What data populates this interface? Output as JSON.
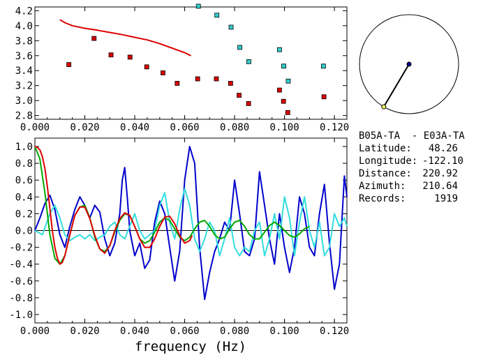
{
  "chart_data": [
    {
      "type": "scatter",
      "name": "dispersion",
      "xlim": [
        0.0,
        0.125
      ],
      "ylim": [
        2.75,
        4.25
      ],
      "xticks": [
        "0.000",
        "0.020",
        "0.040",
        "0.060",
        "0.080",
        "0.100",
        "0.120"
      ],
      "yticks": [
        "2.8",
        "3.0",
        "3.2",
        "3.4",
        "3.6",
        "3.8",
        "4.0",
        "4.2"
      ],
      "series": [
        {
          "color": "#dd0000",
          "kind": "points",
          "x": [
            0.0136,
            0.0237,
            0.0305,
            0.0381,
            0.0448,
            0.0513,
            0.057,
            0.0652,
            0.0727,
            0.0784,
            0.0818,
            0.0856,
            0.098,
            0.0996,
            0.1013,
            0.1158
          ],
          "y": [
            3.48,
            3.83,
            3.61,
            3.58,
            3.45,
            3.37,
            3.23,
            3.29,
            3.29,
            3.23,
            3.07,
            2.96,
            3.14,
            2.99,
            2.84,
            3.05
          ]
        },
        {
          "color": "#33cccc",
          "kind": "points",
          "x": [
            0.0655,
            0.0729,
            0.0786,
            0.0821,
            0.0857,
            0.098,
            0.0997,
            0.1015,
            0.1156
          ],
          "y": [
            4.26,
            4.14,
            3.98,
            3.71,
            3.52,
            3.68,
            3.46,
            3.26,
            3.46
          ]
        },
        {
          "color": "#dd0000",
          "kind": "line",
          "x": [
            0.01,
            0.012,
            0.015,
            0.02,
            0.025,
            0.03,
            0.035,
            0.04,
            0.045,
            0.05,
            0.055,
            0.06,
            0.0625
          ],
          "y": [
            4.08,
            4.04,
            4.0,
            3.965,
            3.94,
            3.91,
            3.88,
            3.845,
            3.81,
            3.76,
            3.7,
            3.64,
            3.6
          ]
        }
      ]
    },
    {
      "type": "line",
      "name": "correlation",
      "xlim": [
        0.0,
        0.125
      ],
      "ylim": [
        -1.1,
        1.1
      ],
      "xlabel": "frequency (Hz)",
      "xticks": [
        "0.000",
        "0.020",
        "0.040",
        "0.060",
        "0.080",
        "0.100",
        "0.120"
      ],
      "yticks": [
        "1.0",
        "0.8",
        "0.6",
        "0.4",
        "0.2",
        "0.0",
        "-0.2",
        "-0.4",
        "-0.6",
        "-0.8",
        "-1.0"
      ],
      "series": [
        {
          "color": "#0000cc",
          "x": [
            0.0,
            0.002,
            0.004,
            0.006,
            0.008,
            0.01,
            0.012,
            0.014,
            0.016,
            0.018,
            0.02,
            0.022,
            0.024,
            0.026,
            0.028,
            0.03,
            0.032,
            0.034,
            0.035,
            0.036,
            0.037,
            0.038,
            0.04,
            0.042,
            0.044,
            0.046,
            0.048,
            0.05,
            0.052,
            0.054,
            0.056,
            0.058,
            0.06,
            0.062,
            0.064,
            0.066,
            0.068,
            0.07,
            0.072,
            0.074,
            0.076,
            0.078,
            0.08,
            0.082,
            0.084,
            0.086,
            0.088,
            0.09,
            0.092,
            0.094,
            0.096,
            0.098,
            0.1,
            0.102,
            0.104,
            0.106,
            0.108,
            0.11,
            0.112,
            0.114,
            0.116,
            0.118,
            0.12,
            0.122,
            0.124,
            0.125
          ],
          "y": [
            0.0,
            0.15,
            0.32,
            0.42,
            0.25,
            -0.05,
            -0.2,
            0.05,
            0.25,
            0.4,
            0.3,
            0.15,
            0.3,
            0.22,
            -0.1,
            -0.3,
            -0.15,
            0.2,
            0.6,
            0.75,
            0.4,
            0.0,
            -0.3,
            -0.15,
            -0.45,
            -0.35,
            0.1,
            0.35,
            0.2,
            -0.2,
            -0.6,
            -0.25,
            0.6,
            1.0,
            0.8,
            -0.2,
            -0.82,
            -0.5,
            -0.25,
            -0.1,
            0.1,
            0.0,
            0.6,
            0.2,
            -0.25,
            -0.3,
            -0.1,
            0.7,
            0.3,
            -0.1,
            -0.4,
            0.2,
            -0.2,
            -0.5,
            -0.2,
            0.4,
            0.2,
            -0.2,
            -0.3,
            0.2,
            0.55,
            -0.15,
            -0.7,
            -0.4,
            0.65,
            0.4
          ]
        },
        {
          "color": "#33dddd",
          "x": [
            0.0,
            0.003,
            0.006,
            0.008,
            0.01,
            0.012,
            0.014,
            0.016,
            0.018,
            0.02,
            0.022,
            0.024,
            0.026,
            0.028,
            0.03,
            0.032,
            0.034,
            0.036,
            0.038,
            0.04,
            0.042,
            0.044,
            0.046,
            0.048,
            0.05,
            0.052,
            0.054,
            0.056,
            0.058,
            0.06,
            0.062,
            0.064,
            0.066,
            0.068,
            0.07,
            0.072,
            0.074,
            0.076,
            0.078,
            0.08,
            0.082,
            0.084,
            0.086,
            0.088,
            0.09,
            0.092,
            0.094,
            0.096,
            0.098,
            0.1,
            0.102,
            0.104,
            0.106,
            0.108,
            0.11,
            0.112,
            0.114,
            0.116,
            0.118,
            0.12,
            0.122,
            0.124,
            0.125
          ],
          "y": [
            0.0,
            -0.05,
            0.2,
            0.3,
            0.15,
            -0.05,
            -0.12,
            -0.08,
            -0.05,
            -0.1,
            -0.05,
            -0.12,
            -0.08,
            -0.05,
            0.05,
            0.1,
            -0.05,
            -0.1,
            0.05,
            0.2,
            0.0,
            -0.1,
            -0.05,
            0.0,
            0.3,
            0.45,
            0.1,
            -0.1,
            0.25,
            0.5,
            0.3,
            -0.1,
            -0.25,
            -0.1,
            0.1,
            0.0,
            -0.3,
            -0.1,
            0.15,
            -0.2,
            -0.3,
            -0.2,
            -0.25,
            0.0,
            0.1,
            -0.3,
            -0.1,
            0.2,
            -0.1,
            0.4,
            0.15,
            -0.3,
            0.1,
            0.4,
            0.0,
            -0.2,
            0.1,
            -0.3,
            -0.2,
            0.2,
            0.05,
            0.15,
            0.05
          ]
        },
        {
          "color": "#00aa00",
          "x": [
            0.0,
            0.002,
            0.004,
            0.006,
            0.008,
            0.01,
            0.012,
            0.014,
            0.016,
            0.018,
            0.02,
            0.022,
            0.024,
            0.026,
            0.028,
            0.03,
            0.032,
            0.034,
            0.036,
            0.038,
            0.04,
            0.042,
            0.044,
            0.046,
            0.048,
            0.05,
            0.052,
            0.054,
            0.056,
            0.058,
            0.06,
            0.062,
            0.064,
            0.066,
            0.068,
            0.07,
            0.072,
            0.074,
            0.076,
            0.078,
            0.08,
            0.082,
            0.084,
            0.086,
            0.088,
            0.09,
            0.092,
            0.094,
            0.096,
            0.098,
            0.1,
            0.102,
            0.104,
            0.106,
            0.108,
            0.11
          ],
          "y": [
            1.0,
            0.85,
            0.45,
            -0.05,
            -0.33,
            -0.4,
            -0.3,
            -0.05,
            0.18,
            0.28,
            0.3,
            0.15,
            -0.08,
            -0.22,
            -0.25,
            -0.18,
            -0.02,
            0.12,
            0.2,
            0.18,
            0.05,
            -0.1,
            -0.15,
            -0.12,
            -0.02,
            0.1,
            0.15,
            0.12,
            0.02,
            -0.08,
            -0.12,
            -0.08,
            0.02,
            0.1,
            0.12,
            0.05,
            -0.05,
            -0.1,
            -0.08,
            0.02,
            0.1,
            0.12,
            0.05,
            -0.05,
            -0.1,
            -0.1,
            -0.02,
            0.06,
            0.1,
            0.06,
            0.0,
            -0.06,
            -0.08,
            -0.04,
            0.02,
            0.05
          ]
        },
        {
          "color": "#dd0000",
          "x": [
            0.0,
            0.001,
            0.002,
            0.003,
            0.004,
            0.005,
            0.006,
            0.007,
            0.008,
            0.009,
            0.01,
            0.011,
            0.012,
            0.014,
            0.016,
            0.018,
            0.02,
            0.022,
            0.024,
            0.026,
            0.028,
            0.03,
            0.032,
            0.034,
            0.036,
            0.038,
            0.04,
            0.042,
            0.044,
            0.046,
            0.048,
            0.05,
            0.052,
            0.054,
            0.056,
            0.058,
            0.06,
            0.062,
            0.063
          ],
          "y": [
            1.0,
            0.99,
            0.96,
            0.88,
            0.74,
            0.52,
            0.26,
            0.0,
            -0.2,
            -0.33,
            -0.4,
            -0.38,
            -0.3,
            -0.05,
            0.18,
            0.28,
            0.28,
            0.14,
            -0.06,
            -0.22,
            -0.27,
            -0.18,
            0.0,
            0.14,
            0.21,
            0.18,
            0.05,
            -0.1,
            -0.2,
            -0.2,
            -0.1,
            0.05,
            0.16,
            0.17,
            0.08,
            -0.06,
            -0.15,
            -0.12,
            -0.06
          ]
        }
      ]
    }
  ],
  "station_map": {
    "circle_color": "#000000",
    "center_dot_color": "#000088",
    "station_dot_color": "#ffff66",
    "azimuth_deg": 210.64
  },
  "info": {
    "pair": "B05A-TA  - E03A-TA",
    "latitude_label": "Latitude:",
    "latitude_value": "48.26",
    "longitude_label": "Longitude:",
    "longitude_value": "-122.10",
    "distance_label": "Distance:",
    "distance_value": "220.92",
    "azimuth_label": "Azimuth:",
    "azimuth_value": "210.64",
    "records_label": "Records:",
    "records_value": "1919"
  }
}
